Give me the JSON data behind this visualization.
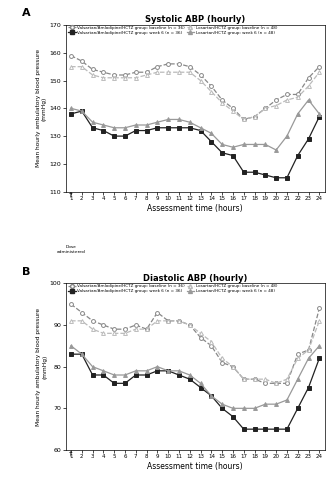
{
  "hours": [
    1,
    2,
    3,
    4,
    5,
    6,
    7,
    8,
    9,
    10,
    11,
    12,
    13,
    14,
    15,
    16,
    17,
    18,
    19,
    20,
    21,
    22,
    23,
    24
  ],
  "sys_valsartan_baseline": [
    159,
    157,
    154,
    153,
    152,
    152,
    153,
    153,
    155,
    156,
    156,
    155,
    152,
    148,
    143,
    140,
    136,
    137,
    140,
    143,
    145,
    145,
    151,
    155
  ],
  "sys_valsartan_week6": [
    138,
    139,
    133,
    132,
    130,
    130,
    132,
    132,
    133,
    133,
    133,
    133,
    132,
    128,
    124,
    123,
    117,
    117,
    116,
    115,
    115,
    123,
    129,
    137
  ],
  "sys_losartan_baseline": [
    155,
    155,
    152,
    151,
    151,
    151,
    151,
    152,
    153,
    153,
    153,
    153,
    150,
    146,
    142,
    139,
    136,
    137,
    140,
    141,
    143,
    144,
    148,
    153
  ],
  "sys_losartan_week6": [
    140,
    139,
    135,
    134,
    133,
    133,
    134,
    134,
    135,
    136,
    136,
    135,
    133,
    131,
    127,
    126,
    127,
    127,
    127,
    125,
    130,
    138,
    143,
    138
  ],
  "dia_valsartan_baseline": [
    95,
    93,
    91,
    90,
    89,
    89,
    90,
    89,
    93,
    91,
    91,
    90,
    87,
    85,
    81,
    80,
    77,
    77,
    76,
    76,
    76,
    83,
    84,
    94
  ],
  "dia_valsartan_week6": [
    83,
    83,
    78,
    78,
    76,
    76,
    78,
    78,
    79,
    79,
    78,
    77,
    75,
    73,
    70,
    68,
    65,
    65,
    65,
    65,
    65,
    70,
    75,
    82
  ],
  "dia_losartan_baseline": [
    91,
    91,
    89,
    88,
    88,
    88,
    89,
    89,
    91,
    91,
    91,
    90,
    88,
    86,
    82,
    80,
    77,
    77,
    77,
    76,
    77,
    82,
    84,
    91
  ],
  "dia_losartan_week6": [
    85,
    83,
    80,
    79,
    78,
    78,
    79,
    79,
    80,
    79,
    79,
    78,
    76,
    73,
    71,
    70,
    70,
    70,
    71,
    71,
    72,
    77,
    82,
    85
  ],
  "title_sys": "Systolic ABP (hourly)",
  "title_dia": "Diastolic ABP (hourly)",
  "xlabel": "Assessment time (hours)",
  "ylim_sys": [
    110,
    170
  ],
  "ylim_dia": [
    60,
    100
  ],
  "yticks_sys": [
    110,
    120,
    130,
    140,
    150,
    160,
    170
  ],
  "yticks_dia": [
    60,
    70,
    80,
    90,
    100
  ],
  "c_val_base": "#888888",
  "c_val_w6": "#222222",
  "c_los_base": "#bbbbbb",
  "c_los_w6": "#999999",
  "legend_labels": [
    "Valsartan/Amlodipine/HCTZ group: baseline (n = 36)",
    "Valsartan/Amlodipine/HCTZ group: week 6 (n = 36)",
    "Losartan/HCTZ group: baseline (n = 48)",
    "Losartan/HCTZ group: week 6 (n = 48)"
  ]
}
